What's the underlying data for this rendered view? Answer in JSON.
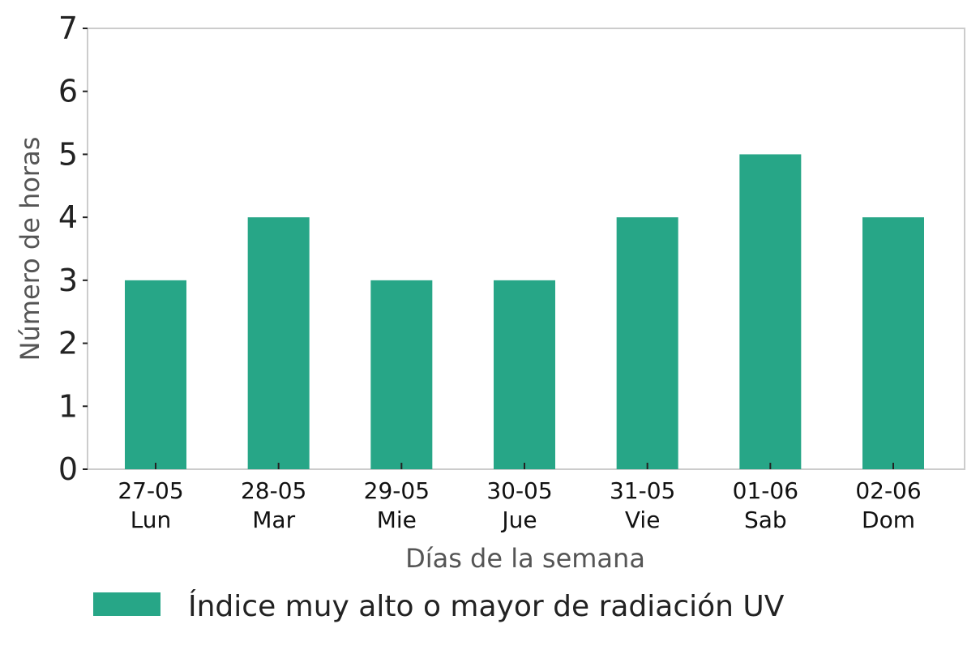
{
  "chart_data": {
    "type": "bar",
    "categories": [
      [
        "27-05",
        "Lun"
      ],
      [
        "28-05",
        "Mar"
      ],
      [
        "29-05",
        "Mie"
      ],
      [
        "30-05",
        "Jue"
      ],
      [
        "31-05",
        "Vie"
      ],
      [
        "01-06",
        "Sab"
      ],
      [
        "02-06",
        "Dom"
      ]
    ],
    "series": [
      {
        "name": "Índice muy alto o mayor de radiación UV",
        "values": [
          3,
          4,
          3,
          3,
          4,
          5,
          4
        ],
        "color": "#27a687"
      }
    ],
    "xlabel": "Días de la semana",
    "ylabel": "Número de horas",
    "ylim": [
      0,
      7
    ],
    "yticks": [
      0,
      1,
      2,
      3,
      4,
      5,
      6,
      7
    ],
    "grid": false,
    "legend_position": "bottom"
  }
}
